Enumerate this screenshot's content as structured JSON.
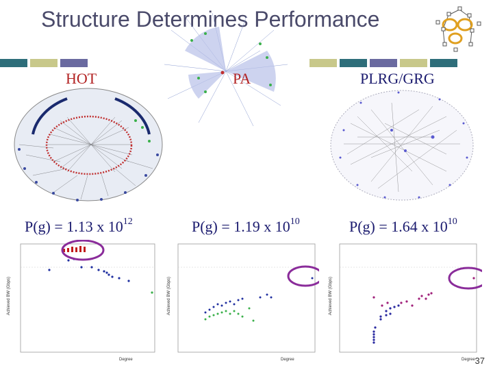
{
  "slide": {
    "title": "Structure Determines Performance",
    "page_number": "37"
  },
  "graphs": [
    {
      "label": "HOT",
      "formula_base": "P(g) = 1.13 x 10",
      "formula_exp": "12"
    },
    {
      "label": "PA",
      "formula_base": "P(g) = 1.19 x 10",
      "formula_exp": "10"
    },
    {
      "label": "PLRG/GRG",
      "formula_base": "P(g) = 1.64 x 10",
      "formula_exp": "10"
    }
  ],
  "plots": [
    {
      "ylabel": "Achieved BW (Gbps)",
      "xlabel": "Degree"
    },
    {
      "ylabel": "Achieved BW (Gbps)",
      "xlabel": "Degree"
    },
    {
      "ylabel": "Achieved BW (Gbps)",
      "xlabel": "Degree"
    }
  ],
  "colors": {
    "title": "#4a4a6a",
    "label_red": "#b22222",
    "label_blue": "#1a1a6e",
    "bar_teal": "#2e6e7a",
    "bar_olive": "#c8c88a",
    "bar_purple": "#6a6aa0",
    "highlight_ring": "#8a2c9a"
  }
}
